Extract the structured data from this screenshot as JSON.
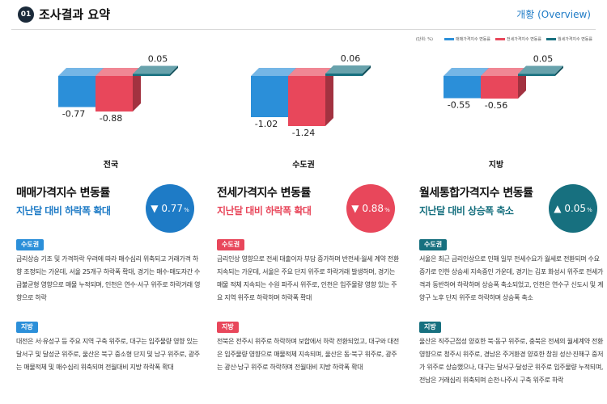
{
  "header": {
    "section_number": "01",
    "section_title": "조사결과 요약",
    "overview_label": "개황 (Overview)"
  },
  "legend": {
    "unit": "(단위: %)",
    "items": [
      {
        "label": "매매가격지수 변동률",
        "color": "#2b8fd9"
      },
      {
        "label": "전세가격지수 변동률",
        "color": "#e8475b"
      },
      {
        "label": "월세가격지수 변동률",
        "color": "#17707f"
      }
    ]
  },
  "chart_data": [
    {
      "type": "bar",
      "region": "전국",
      "categories": [
        "매매가격지수 변동률",
        "전세가격지수 변동률",
        "월세가격지수 변동률"
      ],
      "values": [
        -0.77,
        -0.88,
        0.05
      ],
      "labels": [
        "-0.77",
        "-0.88",
        "0.05"
      ]
    },
    {
      "type": "bar",
      "region": "수도권",
      "categories": [
        "매매가격지수 변동률",
        "전세가격지수 변동률",
        "월세가격지수 변동률"
      ],
      "values": [
        -1.02,
        -1.24,
        0.06
      ],
      "labels": [
        "-1.02",
        "-1.24",
        "0.06"
      ]
    },
    {
      "type": "bar",
      "region": "지방",
      "categories": [
        "매매가격지수 변동률",
        "전세가격지수 변동률",
        "월세가격지수 변동률"
      ],
      "values": [
        -0.55,
        -0.56,
        0.05
      ],
      "labels": [
        "-0.55",
        "-0.56",
        "0.05"
      ]
    }
  ],
  "columns": [
    {
      "title": "매매가격지수 변동률",
      "subtitle": "지난달 대비 하락폭 확대",
      "color": "#1e7bc6",
      "badge_arrow": "▼",
      "badge_value": "0.77",
      "badge_pct": "%",
      "sections": [
        {
          "tag": "수도권",
          "text": "금리상승 기조 및 가격하락 우려에 따라 매수심리 위축되고 거래가격 하향 조정되는 가운데, 서울 25개구 하락폭 확대, 경기는 매수·매도자간 수급불균형 영향으로 매물 누적되며, 인천은 연수·서구 위주로 하락거래 영향으로 하락"
        },
        {
          "tag": "지방",
          "text": "대전은 서·유성구 등 주요 지역 구축 위주로, 대구는 입주물량 영향 있는 달서구 및 달성군 위주로, 울산은 북구 중소형 단지 및 남구 위주로, 광주는 매물적체 및 매수심리 위축되며 전월대비 지방 하락폭 확대"
        }
      ]
    },
    {
      "title": "전세가격지수 변동률",
      "subtitle": "지난달 대비 하락폭 확대",
      "color": "#e8475b",
      "badge_arrow": "▼",
      "badge_value": "0.88",
      "badge_pct": "%",
      "sections": [
        {
          "tag": "수도권",
          "text": "금리인상 영향으로 전세 대출이자 부담 증가하며 반전세·월세 계약 전환 지속되는 가운데, 서울은 주요 단지 위주로 하락거래 발생하며, 경기는 매물 적체 지속되는 수원 파주시 위주로, 인천은 입주물량 영향 있는 주요 지역 위주로 하락하며 하락폭 확대"
        },
        {
          "tag": "지방",
          "text": "전북은 전주시 위주로 하락하며 보합에서 하락 전환되었고, 대구와 대전은 입주물량 영향으로 매물적체 지속되며, 울산은 동·북구 위주로, 광주는 광산·남구 위주로 하락하며 전월대비 지방 하락폭 확대"
        }
      ]
    },
    {
      "title": "월세통합가격지수 변동률",
      "subtitle": "지난달 대비 상승폭 축소",
      "color": "#17707f",
      "badge_arrow": "▲",
      "badge_value": "0.05",
      "badge_pct": "%",
      "sections": [
        {
          "tag": "수도권",
          "text": "서울은 최근 금리인상으로 인해 일부 전세수요가 월세로 전환되며 수요증가로 인한 상승세 지속중인 가운데, 경기는 김포 화성시 위주로 전세가격과 동반하여 하락하며 상승폭 축소되었고, 인천은 연수구 신도시 및 계양구 노후 단지 위주로 하락하며 상승폭 축소"
        },
        {
          "tag": "지방",
          "text": "울산은 직주근접성 양호한 북·동구 위주로, 충북은 전세의 월세계약 전환 영향으로 청주시 위주로, 경남은 주거환경 양호한 창원 성산·진해구 중저가 위주로 상승했으나, 대구는 달서구·달성군 위주로 입주물량 누적되며, 전남은 거래심리 위축되며 순천·나주시 구축 위주로 하락"
        }
      ]
    }
  ]
}
